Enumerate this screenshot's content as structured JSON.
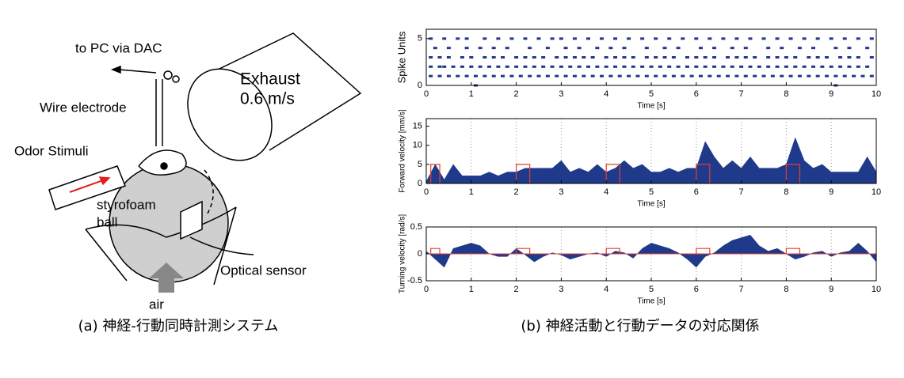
{
  "diagram": {
    "to_pc": "to PC via DAC",
    "exhaust": "Exhaust",
    "speed": "0.6 m/s",
    "wire": "Wire electrode",
    "odor": "Odor Stimuli",
    "ball1": "styrofoam",
    "ball2": "ball",
    "sensor": "Optical sensor",
    "air": "air",
    "caption": "(a) 神経-行動同時計測システム"
  },
  "caption_b": "(b) 神経活動と行動データの対応関係",
  "chart_data": [
    {
      "type": "raster",
      "xlabel": "Time [s]",
      "ylabel": "Spike Units",
      "xlim": [
        0,
        10
      ],
      "xticks": [
        0,
        1,
        2,
        3,
        4,
        5,
        6,
        7,
        8,
        9,
        10
      ],
      "ylim": [
        0,
        6
      ],
      "yticks": [
        0,
        5
      ],
      "color": "#1f3a8a",
      "series": [
        {
          "unit": 0,
          "x": [
            1.1,
            9.1
          ]
        },
        {
          "unit": 1,
          "x": [
            0.1,
            0.3,
            0.5,
            0.7,
            0.9,
            1.1,
            1.3,
            1.5,
            1.7,
            1.9,
            2.1,
            2.3,
            2.5,
            2.7,
            2.9,
            3.1,
            3.3,
            3.5,
            3.7,
            3.9,
            4.1,
            4.3,
            4.5,
            4.7,
            4.9,
            5.1,
            5.3,
            5.5,
            5.7,
            5.9,
            6.1,
            6.3,
            6.5,
            6.7,
            6.9,
            7.1,
            7.3,
            7.5,
            7.7,
            7.9,
            8.1,
            8.3,
            8.5,
            8.7,
            8.9,
            9.1,
            9.3,
            9.5,
            9.7,
            9.9
          ]
        },
        {
          "unit": 2,
          "x": [
            0.1,
            0.3,
            0.4,
            0.6,
            0.8,
            1.0,
            1.2,
            1.4,
            1.6,
            1.8,
            2.0,
            2.2,
            2.4,
            2.6,
            2.8,
            3.0,
            3.2,
            3.4,
            3.6,
            3.8,
            4.0,
            4.2,
            4.4,
            4.6,
            4.8,
            5.0,
            5.2,
            5.4,
            5.6,
            5.8,
            6.0,
            6.2,
            6.4,
            6.6,
            6.8,
            7.0,
            7.2,
            7.4,
            7.6,
            7.8,
            8.0,
            8.2,
            8.4,
            8.6,
            8.8,
            9.0,
            9.2,
            9.4,
            9.6,
            9.8
          ]
        },
        {
          "unit": 3,
          "x": [
            0.1,
            0.3,
            0.5,
            0.8,
            1.0,
            1.3,
            1.5,
            1.7,
            2.0,
            2.2,
            2.4,
            2.6,
            2.9,
            3.1,
            3.3,
            3.5,
            3.7,
            4.0,
            4.2,
            4.4,
            4.6,
            4.9,
            5.1,
            5.3,
            5.5,
            5.8,
            6.0,
            6.2,
            6.4,
            6.7,
            6.9,
            7.1,
            7.3,
            7.6,
            7.8,
            8.0,
            8.2,
            8.5,
            8.7,
            8.9,
            9.2,
            9.4,
            9.6,
            9.9
          ]
        },
        {
          "unit": 4,
          "x": [
            0.2,
            0.5,
            0.9,
            1.2,
            1.5,
            1.8,
            2.3,
            2.7,
            3.1,
            3.4,
            3.8,
            4.1,
            4.4,
            4.9,
            5.3,
            5.6,
            6.1,
            6.4,
            6.8,
            7.1,
            7.6,
            7.9,
            8.3,
            8.6,
            9.1,
            9.4,
            9.8
          ]
        },
        {
          "unit": 5,
          "x": [
            0.1,
            0.4,
            0.7,
            0.9,
            1.3,
            1.6,
            1.9,
            2.2,
            2.5,
            2.8,
            3.0,
            3.3,
            3.6,
            3.9,
            4.2,
            4.5,
            4.8,
            5.1,
            5.4,
            5.7,
            6.0,
            6.3,
            6.6,
            6.9,
            7.2,
            7.5,
            7.8,
            8.1,
            8.4,
            8.7,
            9.0,
            9.3,
            9.6,
            9.9
          ]
        }
      ]
    },
    {
      "type": "area",
      "xlabel": "Time [s]",
      "ylabel": "Forward velocity [mm/s]",
      "xlim": [
        0,
        10
      ],
      "xticks": [
        0,
        1,
        2,
        3,
        4,
        5,
        6,
        7,
        8,
        9,
        10
      ],
      "ylim": [
        0,
        17
      ],
      "yticks": [
        0,
        5,
        10,
        15
      ],
      "color": "#1f3a8a",
      "grid": true,
      "x": [
        0,
        0.2,
        0.4,
        0.6,
        0.8,
        1,
        1.2,
        1.4,
        1.6,
        1.8,
        2,
        2.2,
        2.4,
        2.6,
        2.8,
        3,
        3.2,
        3.4,
        3.6,
        3.8,
        4,
        4.2,
        4.4,
        4.6,
        4.8,
        5,
        5.2,
        5.4,
        5.6,
        5.8,
        6,
        6.2,
        6.4,
        6.6,
        6.8,
        7,
        7.2,
        7.4,
        7.6,
        7.8,
        8,
        8.2,
        8.4,
        8.6,
        8.8,
        9,
        9.2,
        9.4,
        9.6,
        9.8,
        10
      ],
      "values": [
        0.5,
        5,
        1,
        5,
        2,
        2,
        2,
        3,
        2,
        3,
        3,
        4,
        4,
        4,
        4,
        6,
        3,
        4,
        3,
        5,
        3,
        4,
        6,
        4,
        5,
        3,
        3,
        4,
        3,
        4,
        4,
        11,
        7,
        4,
        6,
        4,
        7,
        4,
        4,
        4,
        5,
        12,
        6,
        4,
        5,
        3,
        3,
        3,
        3,
        7,
        3
      ],
      "stimulus": {
        "color": "#e04030",
        "on": [
          0.1,
          2.0,
          4.0,
          6.0,
          8.0
        ],
        "off": [
          0.3,
          2.3,
          4.3,
          6.3,
          8.3
        ],
        "level": 5
      }
    },
    {
      "type": "area",
      "xlabel": "Time [s]",
      "ylabel": "Turning velocity [rad/s]",
      "xlim": [
        0,
        10
      ],
      "xticks": [
        0,
        1,
        2,
        3,
        4,
        5,
        6,
        7,
        8,
        9,
        10
      ],
      "ylim": [
        -0.5,
        0.5
      ],
      "yticks": [
        -0.5,
        0,
        0.5
      ],
      "color": "#1f3a8a",
      "grid": true,
      "x": [
        0,
        0.2,
        0.4,
        0.6,
        0.8,
        1,
        1.2,
        1.4,
        1.6,
        1.8,
        2,
        2.2,
        2.4,
        2.6,
        2.8,
        3,
        3.2,
        3.4,
        3.6,
        3.8,
        4,
        4.2,
        4.4,
        4.6,
        4.8,
        5,
        5.2,
        5.4,
        5.6,
        5.8,
        6,
        6.2,
        6.4,
        6.6,
        6.8,
        7,
        7.2,
        7.4,
        7.6,
        7.8,
        8,
        8.2,
        8.4,
        8.6,
        8.8,
        9,
        9.2,
        9.4,
        9.6,
        9.8,
        10
      ],
      "values": [
        0.05,
        -0.1,
        -0.25,
        0.1,
        0.15,
        0.2,
        0.15,
        0,
        -0.05,
        -0.05,
        0.1,
        -0.02,
        -0.15,
        -0.05,
        0.02,
        -0.02,
        -0.1,
        -0.05,
        0,
        0.02,
        -0.05,
        0.05,
        0.02,
        -0.08,
        0.1,
        0.2,
        0.15,
        0.1,
        0.02,
        -0.1,
        -0.25,
        -0.05,
        0.02,
        0.15,
        0.25,
        0.3,
        0.35,
        0.15,
        0.05,
        0.1,
        0,
        -0.1,
        -0.05,
        0.02,
        0.05,
        -0.05,
        0.02,
        0.05,
        0.2,
        0.05,
        -0.15
      ],
      "stimulus": {
        "color": "#e04030",
        "on": [
          0.1,
          2.0,
          4.0,
          6.0,
          8.0
        ],
        "off": [
          0.3,
          2.3,
          4.3,
          6.3,
          8.3
        ],
        "level": 0.1
      }
    }
  ]
}
